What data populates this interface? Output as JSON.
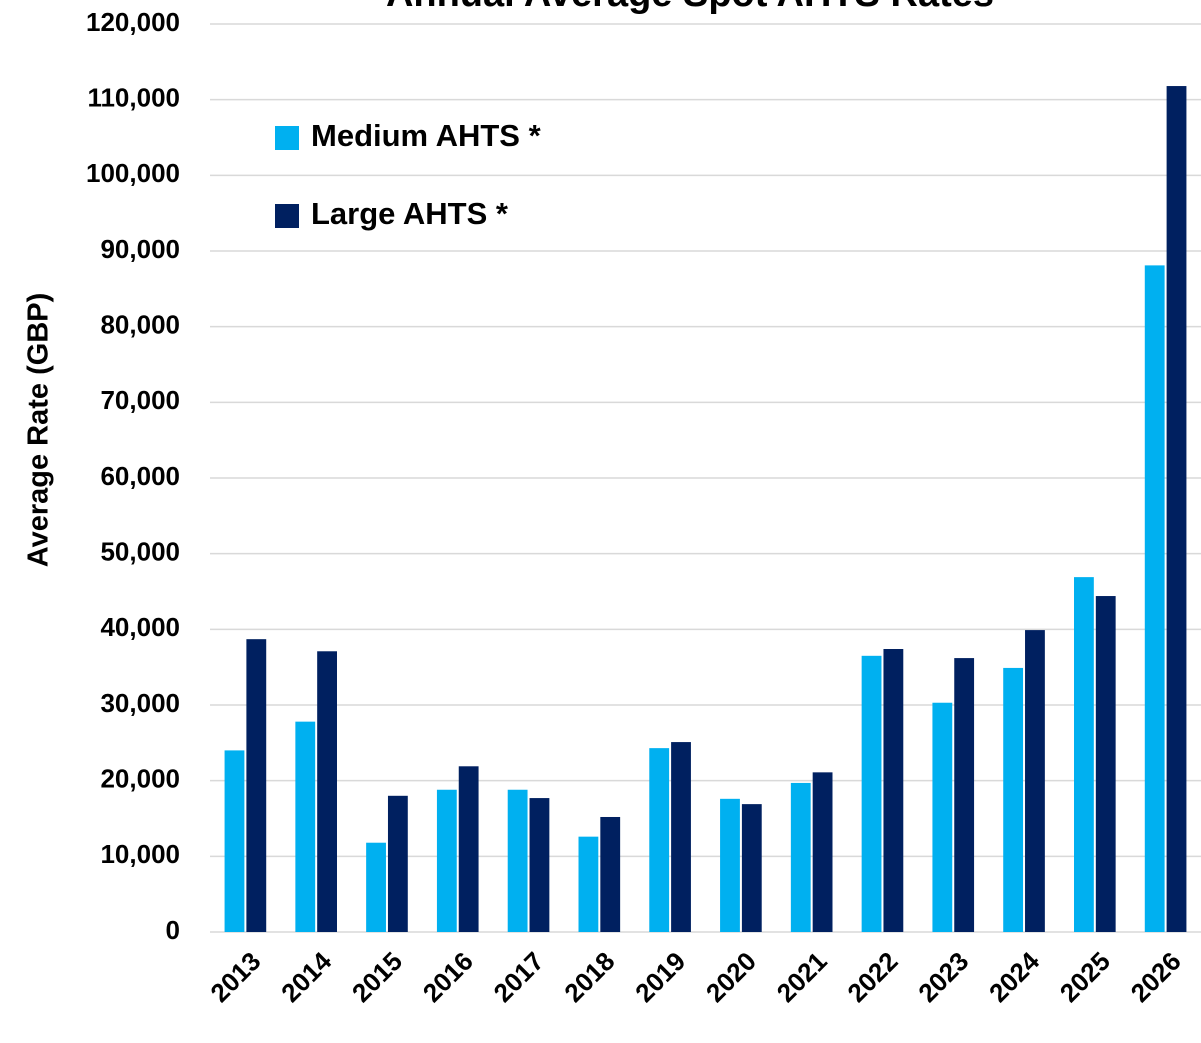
{
  "chart_data": {
    "type": "bar",
    "title": "Annual Average Spot AHTS Rates",
    "y_label": "Average Rate (GBP)",
    "categories": [
      "2013",
      "2014",
      "2015",
      "2016",
      "2017",
      "2018",
      "2019",
      "2020",
      "2021",
      "2022",
      "2023",
      "2024",
      "2025",
      "2026"
    ],
    "series": [
      {
        "name": "Medium AHTS *",
        "color": "#00b0f0",
        "values": [
          24000,
          27800,
          11800,
          18800,
          18800,
          12600,
          24300,
          17600,
          19700,
          36500,
          30300,
          34900,
          46900,
          88100
        ]
      },
      {
        "name": "Large AHTS *",
        "color": "#002060",
        "values": [
          38700,
          37100,
          18000,
          21900,
          17700,
          15200,
          25100,
          16900,
          21100,
          37400,
          36200,
          39900,
          44400,
          111800
        ]
      }
    ],
    "ylim": [
      0,
      120000
    ],
    "yticks": [
      0,
      {
        "value": 10000,
        "label": "10,000"
      },
      {
        "value": 20000,
        "label": "20,000"
      },
      {
        "value": 30000,
        "label": "30,000"
      },
      {
        "value": 40000,
        "label": "40,000"
      },
      {
        "value": 50000,
        "label": "50,000"
      },
      {
        "value": 60000,
        "label": "60,000"
      },
      {
        "value": 70000,
        "label": "70,000"
      },
      {
        "value": 80000,
        "label": "80,000"
      },
      {
        "value": 90000,
        "label": "90,000"
      },
      {
        "value": 100000,
        "label": "100,000"
      },
      {
        "value": 110000,
        "label": "110,000"
      },
      {
        "value": 120000,
        "label": "120,000"
      }
    ],
    "grid": true,
    "legend": "upper left"
  }
}
